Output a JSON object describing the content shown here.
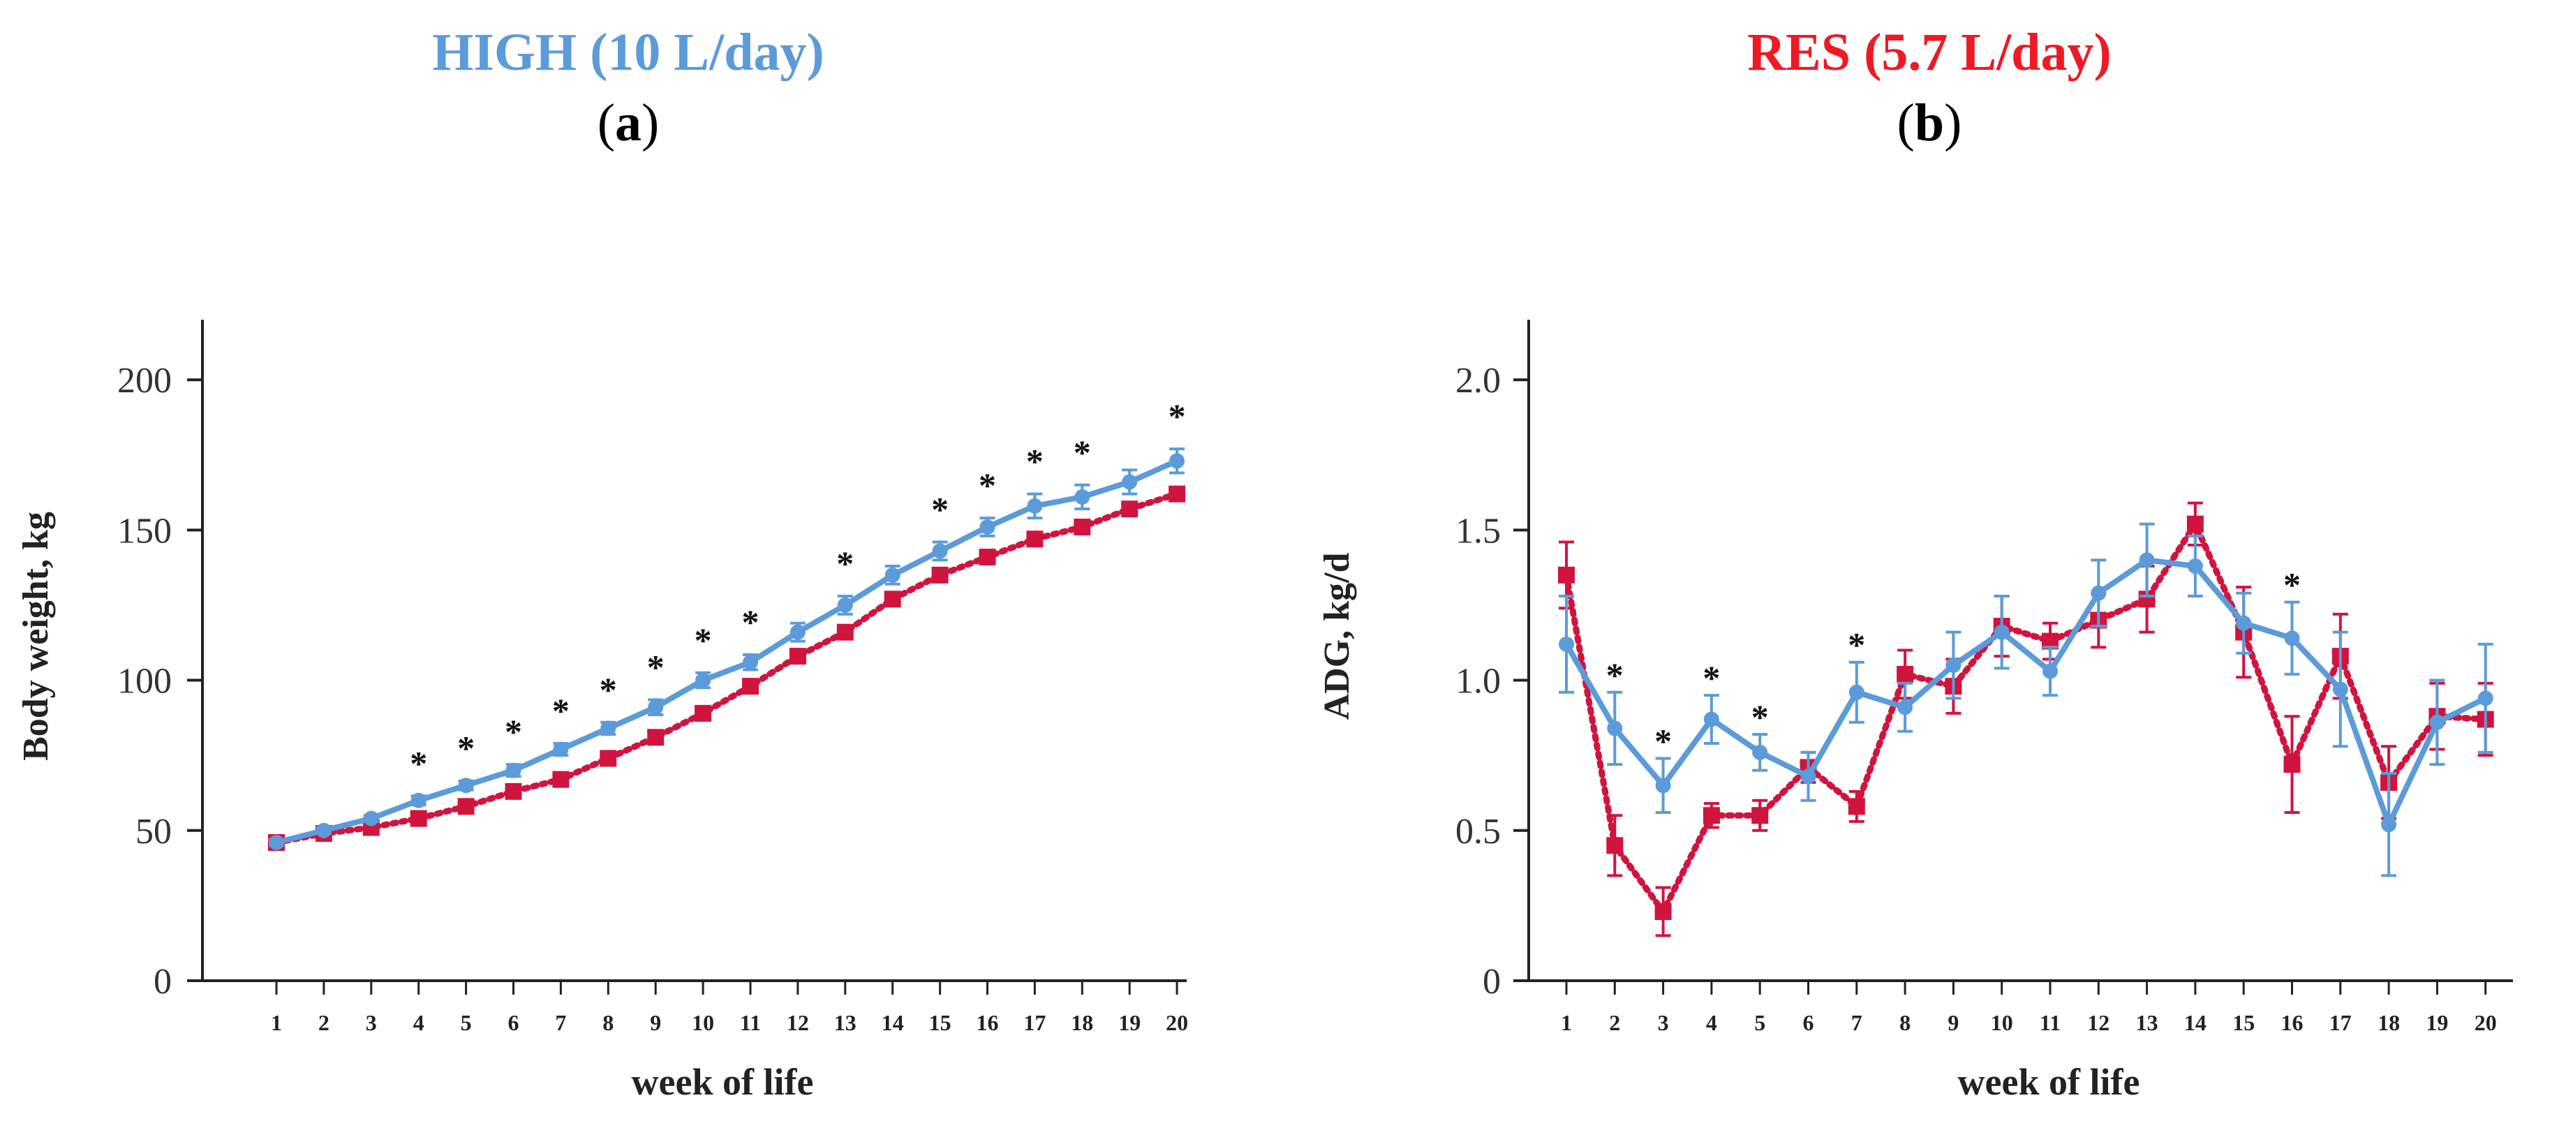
{
  "headers": [
    {
      "title": "HIGH (10 L/day)",
      "label_open": "(",
      "label_letter": "a",
      "label_close": ")"
    },
    {
      "title": "RES (5.7 L/day)",
      "label_open": "(",
      "label_letter": "b",
      "label_close": ")"
    }
  ],
  "colors": {
    "high": "#5b9bd9",
    "res": "#d0143e",
    "high_title": "#5b9bd9",
    "res_title": "#ee1a23",
    "axis": "#222222"
  },
  "chart_data": [
    {
      "type": "line",
      "panel": "a",
      "xlabel": "week of life",
      "ylabel": "Body weight, kg",
      "x": [
        1,
        2,
        3,
        4,
        5,
        6,
        7,
        8,
        9,
        10,
        11,
        12,
        13,
        14,
        15,
        16,
        17,
        18,
        19,
        20
      ],
      "ylim": [
        0,
        220
      ],
      "yticks": [
        0,
        50,
        100,
        150,
        200
      ],
      "series": [
        {
          "name": "HIGH",
          "values": [
            46,
            50,
            54,
            60,
            65,
            70,
            77,
            84,
            91,
            100,
            106,
            116,
            125,
            135,
            143,
            151,
            158,
            161,
            166,
            173
          ],
          "errors": [
            1,
            1,
            1,
            1.5,
            1.5,
            2,
            2,
            2,
            2.5,
            2.5,
            2.5,
            3,
            3,
            3,
            3,
            3,
            4,
            4,
            4,
            4
          ]
        },
        {
          "name": "RES",
          "values": [
            46,
            49,
            51,
            54,
            58,
            63,
            67,
            74,
            81,
            89,
            98,
            108,
            116,
            127,
            135,
            141,
            147,
            151,
            157,
            162
          ],
          "errors": [
            1,
            1,
            1,
            1,
            1.5,
            1.5,
            1.5,
            1.5,
            2,
            2,
            2,
            2,
            2,
            2,
            2,
            2,
            2,
            2,
            2,
            2
          ]
        }
      ],
      "significant_weeks": [
        4,
        5,
        6,
        7,
        8,
        9,
        10,
        11,
        13,
        15,
        16,
        17,
        18,
        20
      ],
      "significance_marker": "*"
    },
    {
      "type": "line",
      "panel": "b",
      "xlabel": "week of life",
      "ylabel": "ADG, kg/d",
      "x": [
        1,
        2,
        3,
        4,
        5,
        6,
        7,
        8,
        9,
        10,
        11,
        12,
        13,
        14,
        15,
        16,
        17,
        18,
        19,
        20
      ],
      "ylim": [
        0,
        2.2
      ],
      "yticks": [
        0,
        0.5,
        1.0,
        1.5,
        2.0
      ],
      "ytick_labels": [
        "0",
        "0.5",
        "1.0",
        "1.5",
        "2.0"
      ],
      "series": [
        {
          "name": "HIGH",
          "values": [
            1.12,
            0.84,
            0.65,
            0.87,
            0.76,
            0.68,
            0.96,
            0.91,
            1.05,
            1.16,
            1.03,
            1.29,
            1.4,
            1.38,
            1.19,
            1.14,
            0.97,
            0.52,
            0.86,
            0.94
          ],
          "errors": [
            0.16,
            0.12,
            0.09,
            0.08,
            0.06,
            0.08,
            0.1,
            0.08,
            0.11,
            0.12,
            0.08,
            0.11,
            0.12,
            0.1,
            0.1,
            0.12,
            0.19,
            0.17,
            0.14,
            0.18
          ]
        },
        {
          "name": "RES",
          "values": [
            1.35,
            0.45,
            0.23,
            0.55,
            0.55,
            0.71,
            0.58,
            1.02,
            0.98,
            1.18,
            1.13,
            1.2,
            1.27,
            1.52,
            1.16,
            0.72,
            1.08,
            0.66,
            0.88,
            0.87
          ],
          "errors": [
            0.11,
            0.1,
            0.08,
            0.04,
            0.05,
            0.05,
            0.05,
            0.08,
            0.09,
            0.1,
            0.06,
            0.09,
            0.11,
            0.07,
            0.15,
            0.16,
            0.14,
            0.12,
            0.11,
            0.12
          ]
        }
      ],
      "significant_weeks": [
        2,
        3,
        4,
        5,
        7,
        16
      ],
      "significance_marker": "*"
    }
  ]
}
